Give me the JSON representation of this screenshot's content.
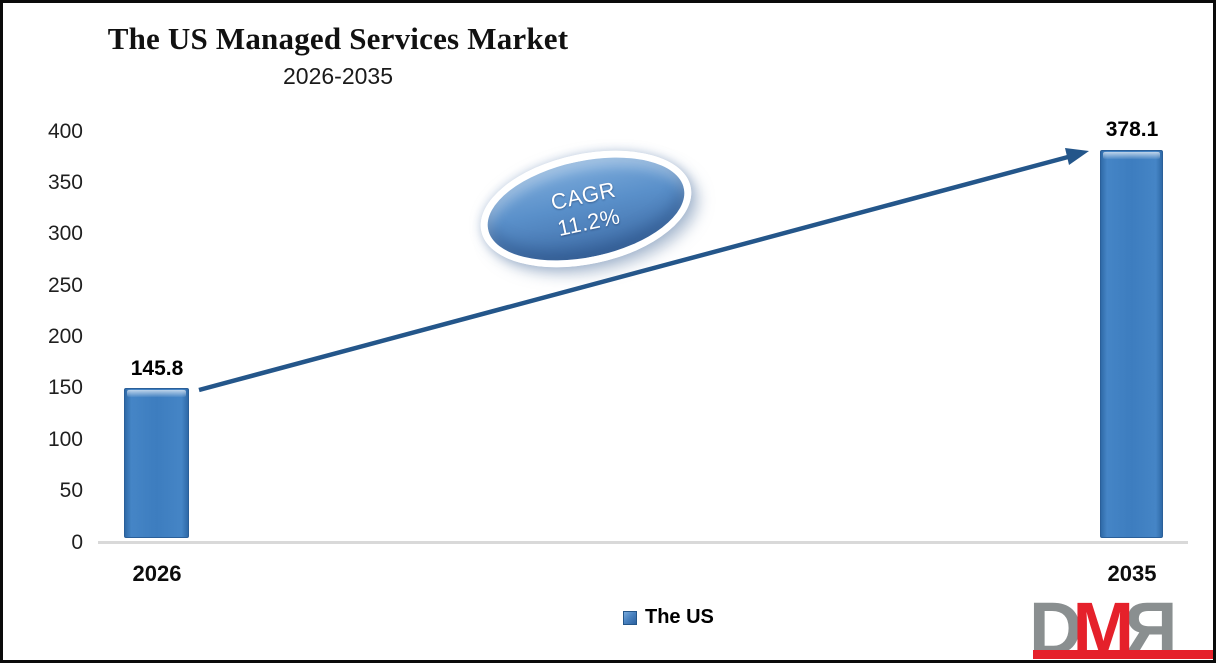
{
  "header": {
    "title": "The US Managed Services Market",
    "subtitle": "2026-2035"
  },
  "chart_data": {
    "type": "bar",
    "title": "The US Managed Services Market",
    "subtitle": "2026-2035",
    "categories": [
      "2026",
      "2035"
    ],
    "series": [
      {
        "name": "The US",
        "values": [
          145.8,
          378.1
        ]
      }
    ],
    "values": [
      145.8,
      378.1
    ],
    "ylim": [
      0,
      400
    ],
    "ytick_step": 50,
    "yticks": [
      "400",
      "350",
      "300",
      "250",
      "200",
      "150",
      "100",
      "50",
      "0"
    ],
    "grid": false,
    "legend_position": "bottom-center",
    "bar_color": "#3d7dbf",
    "arrow_color": "#24568a",
    "annotations": [
      {
        "shape": "ellipse",
        "line1": "CAGR",
        "line2": "11.2%",
        "fill": "#5a90ca",
        "text_color": "#ffffff"
      }
    ]
  },
  "legend": {
    "label": "The US",
    "swatch_color": "#3d7dbf"
  },
  "logo": {
    "letters": [
      "D",
      "M",
      "R"
    ],
    "gray": "#8a8f90",
    "red": "#e5212b"
  }
}
